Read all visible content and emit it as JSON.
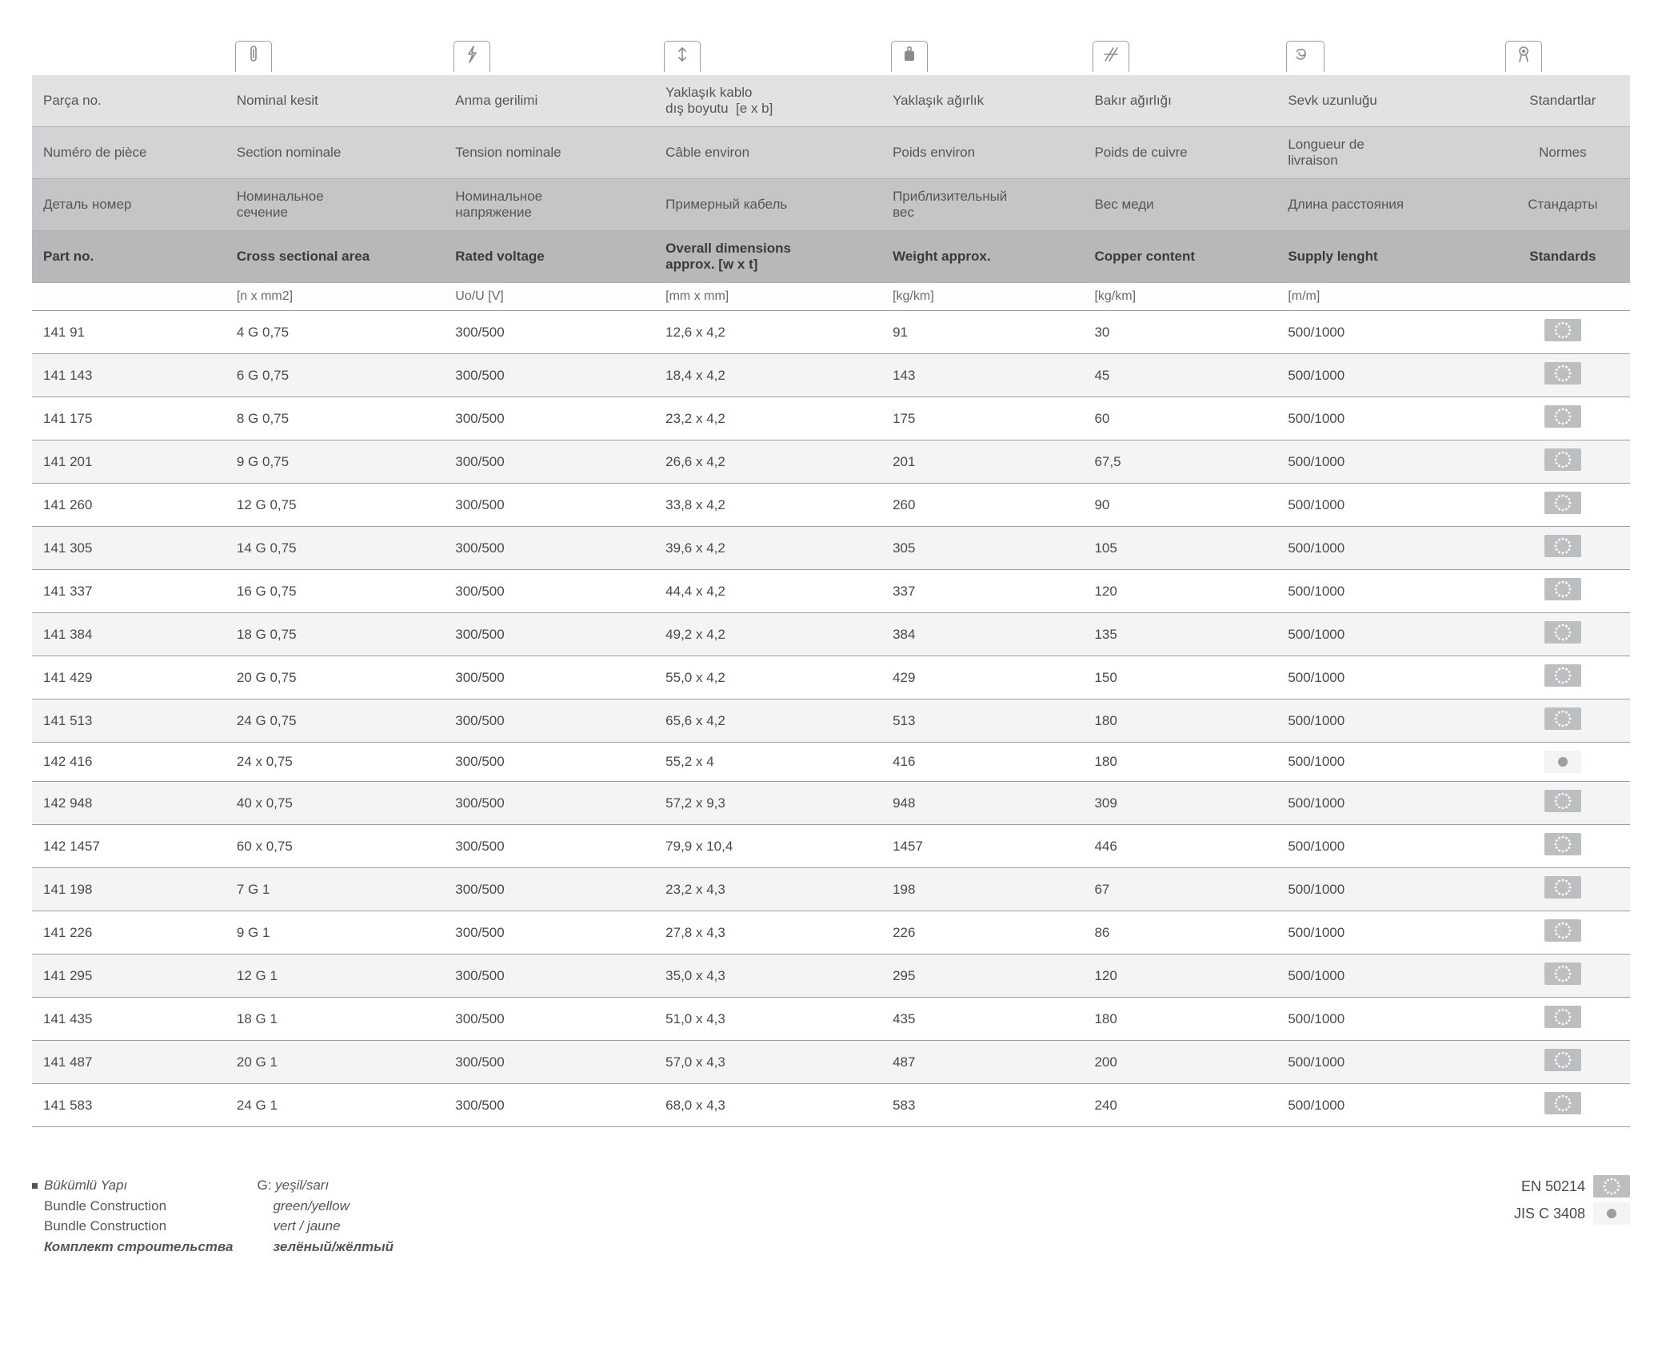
{
  "headers": {
    "tr": [
      "Parça no.",
      "Nominal kesit",
      "Anma gerilimi",
      "Yaklaşık kablo dış boyutu  [e x b]",
      "Yaklaşık ağırlık",
      "Bakır ağırlığı",
      "Sevk uzunluğu",
      "Standartlar"
    ],
    "fr": [
      "Numéro de pièce",
      "Section nominale",
      "Tension nominale",
      "Câble environ",
      "Poids environ",
      "Poids de cuivre",
      "Longueur de livraison",
      "Normes"
    ],
    "ru": [
      "Деталь номер",
      "Номинальное сечение",
      "Номинальное напряжение",
      "Примерный кабель",
      "Приблизительный вес",
      "Вес меди",
      "Длина расстояния",
      "Стандарты"
    ],
    "en": [
      "Part no.",
      "Cross sectional area",
      "Rated voltage",
      "Overall dimensions approx. [w x t]",
      "Weight approx.",
      "Copper content",
      "Supply lenght",
      "Standards"
    ]
  },
  "units": [
    "",
    "[n x mm2]",
    "Uo/U [V]",
    "[mm x mm]",
    "[kg/km]",
    "[kg/km]",
    "[m/m]",
    ""
  ],
  "rows": [
    {
      "part": "141 91",
      "cs": "4 G 0,75",
      "rv": "300/500",
      "dim": "12,6 x 4,2",
      "w": "91",
      "cu": "30",
      "sl": "500/1000",
      "std": "eu"
    },
    {
      "part": "141 143",
      "cs": "6 G 0,75",
      "rv": "300/500",
      "dim": "18,4 x 4,2",
      "w": "143",
      "cu": "45",
      "sl": "500/1000",
      "std": "eu"
    },
    {
      "part": "141 175",
      "cs": "8 G 0,75",
      "rv": "300/500",
      "dim": "23,2 x 4,2",
      "w": "175",
      "cu": "60",
      "sl": "500/1000",
      "std": "eu"
    },
    {
      "part": "141 201",
      "cs": "9 G 0,75",
      "rv": "300/500",
      "dim": "26,6 x 4,2",
      "w": "201",
      "cu": "67,5",
      "sl": "500/1000",
      "std": "eu"
    },
    {
      "part": "141 260",
      "cs": "12 G 0,75",
      "rv": "300/500",
      "dim": "33,8 x 4,2",
      "w": "260",
      "cu": "90",
      "sl": "500/1000",
      "std": "eu"
    },
    {
      "part": "141 305",
      "cs": "14 G 0,75",
      "rv": "300/500",
      "dim": "39,6 x 4,2",
      "w": "305",
      "cu": "105",
      "sl": "500/1000",
      "std": "eu"
    },
    {
      "part": "141 337",
      "cs": "16 G 0,75",
      "rv": "300/500",
      "dim": "44,4 x 4,2",
      "w": "337",
      "cu": "120",
      "sl": "500/1000",
      "std": "eu"
    },
    {
      "part": "141 384",
      "cs": "18 G 0,75",
      "rv": "300/500",
      "dim": "49,2 x 4,2",
      "w": "384",
      "cu": "135",
      "sl": "500/1000",
      "std": "eu"
    },
    {
      "part": "141 429",
      "cs": "20 G 0,75",
      "rv": "300/500",
      "dim": "55,0 x 4,2",
      "w": "429",
      "cu": "150",
      "sl": "500/1000",
      "std": "eu"
    },
    {
      "part": "141 513",
      "cs": "24 G 0,75",
      "rv": "300/500",
      "dim": "65,6 x 4,2",
      "w": "513",
      "cu": "180",
      "sl": "500/1000",
      "std": "eu"
    },
    {
      "part": "142 416",
      "cs": "24 x 0,75",
      "rv": "300/500",
      "dim": "55,2 x 4",
      "w": "416",
      "cu": "180",
      "sl": "500/1000",
      "std": "dot"
    },
    {
      "part": "142 948",
      "cs": "40 x 0,75",
      "rv": "300/500",
      "dim": "57,2 x 9,3",
      "w": "948",
      "cu": "309",
      "sl": "500/1000",
      "std": "eu"
    },
    {
      "part": "142 1457",
      "cs": "60 x 0,75",
      "rv": "300/500",
      "dim": "79,9 x 10,4",
      "w": "1457",
      "cu": "446",
      "sl": "500/1000",
      "std": "eu"
    },
    {
      "part": "141 198",
      "cs": "7 G 1",
      "rv": "300/500",
      "dim": "23,2 x 4,3",
      "w": "198",
      "cu": "67",
      "sl": "500/1000",
      "std": "eu"
    },
    {
      "part": "141 226",
      "cs": "9 G 1",
      "rv": "300/500",
      "dim": "27,8 x 4,3",
      "w": "226",
      "cu": "86",
      "sl": "500/1000",
      "std": "eu"
    },
    {
      "part": "141 295",
      "cs": "12 G 1",
      "rv": "300/500",
      "dim": "35,0 x 4,3",
      "w": "295",
      "cu": "120",
      "sl": "500/1000",
      "std": "eu"
    },
    {
      "part": "141 435",
      "cs": "18 G 1",
      "rv": "300/500",
      "dim": "51,0 x 4,3",
      "w": "435",
      "cu": "180",
      "sl": "500/1000",
      "std": "eu"
    },
    {
      "part": "141 487",
      "cs": "20 G 1",
      "rv": "300/500",
      "dim": "57,0 x 4,3",
      "w": "487",
      "cu": "200",
      "sl": "500/1000",
      "std": "eu"
    },
    {
      "part": "141 583",
      "cs": "24 G 1",
      "rv": "300/500",
      "dim": "68,0 x 4,3",
      "w": "583",
      "cu": "240",
      "sl": "500/1000",
      "std": "eu"
    }
  ],
  "icons": [
    "",
    "clip",
    "bolt",
    "arrows",
    "weight",
    "hatch",
    "spiral",
    "ribbon"
  ],
  "footer": {
    "left_col1": [
      "Bükümlü Yapı",
      "Bundle Construction",
      "Bundle Construction",
      "Комплект строительства"
    ],
    "left_col2_h": "G:",
    "left_col2": [
      "yeşil/sarı",
      "green/yellow",
      "vert / jaune",
      "зелёный/жёлтый"
    ],
    "right": [
      {
        "label": "EN 50214",
        "std": "eu"
      },
      {
        "label": "JIS C 3408",
        "std": "dot"
      }
    ]
  }
}
